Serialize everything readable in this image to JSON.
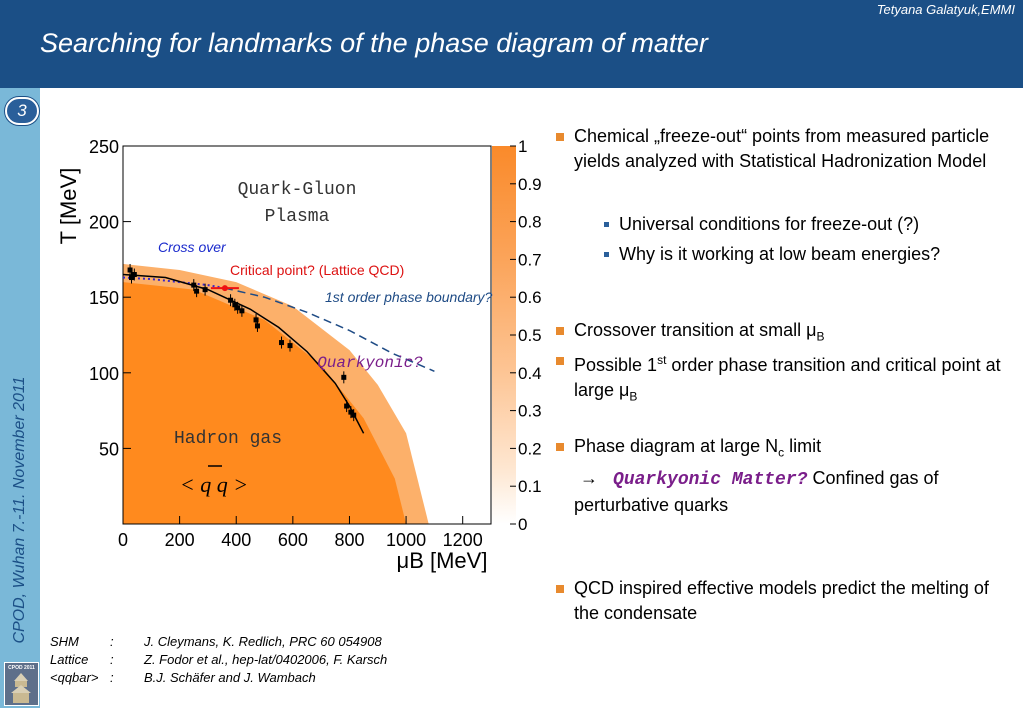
{
  "header": {
    "author": "Tetyana Galatyuk,EMMI",
    "title": "Searching for landmarks of the phase diagram of matter"
  },
  "sidebar": {
    "slide_number": "3",
    "conference": "CPOD, Wuhan 7.-11. November 2011",
    "logo_text": "CPOD 2011"
  },
  "chart_data": {
    "type": "scatter",
    "xlabel": "μB [MeV]",
    "ylabel": "T [MeV]",
    "xlim": [
      0,
      1300
    ],
    "ylim": [
      0,
      250
    ],
    "x_ticks": [
      "0",
      "200",
      "400",
      "600",
      "800",
      "1000",
      "1200"
    ],
    "y_ticks": [
      "50",
      "100",
      "150",
      "200",
      "250"
    ],
    "colorbar_ticks": [
      "0",
      "0.1",
      "0.2",
      "0.3",
      "0.4",
      "0.5",
      "0.6",
      "0.7",
      "0.8",
      "0.9",
      "1"
    ],
    "region_labels": {
      "qgp_line1": "Quark-Gluon",
      "qgp_line2": "Plasma",
      "hadron": "Hadron gas",
      "quarkyonic": "Quarkyonic?",
      "condensate": "< q q >"
    },
    "annotations": {
      "crossover": "Cross over",
      "critical_point": "Critical point? (Lattice QCD)",
      "first_order": "1st order phase boundary?"
    },
    "freeze_out_points": [
      {
        "x": 25,
        "y": 168
      },
      {
        "x": 30,
        "y": 163
      },
      {
        "x": 40,
        "y": 165
      },
      {
        "x": 250,
        "y": 158
      },
      {
        "x": 260,
        "y": 154
      },
      {
        "x": 290,
        "y": 155
      },
      {
        "x": 380,
        "y": 148
      },
      {
        "x": 395,
        "y": 145
      },
      {
        "x": 405,
        "y": 143
      },
      {
        "x": 420,
        "y": 141
      },
      {
        "x": 470,
        "y": 135
      },
      {
        "x": 475,
        "y": 131
      },
      {
        "x": 560,
        "y": 120
      },
      {
        "x": 590,
        "y": 118
      },
      {
        "x": 780,
        "y": 97
      },
      {
        "x": 790,
        "y": 78
      },
      {
        "x": 805,
        "y": 74
      },
      {
        "x": 815,
        "y": 72
      }
    ],
    "freeze_out_curve": [
      [
        0,
        165
      ],
      [
        150,
        163
      ],
      [
        300,
        155
      ],
      [
        450,
        142
      ],
      [
        550,
        130
      ],
      [
        650,
        114
      ],
      [
        750,
        93
      ],
      [
        800,
        78
      ],
      [
        850,
        60
      ]
    ],
    "crossover_curve": [
      [
        0,
        163
      ],
      [
        100,
        162
      ],
      [
        200,
        160
      ],
      [
        300,
        158
      ],
      [
        360,
        156
      ]
    ],
    "critical_point": {
      "x": 360,
      "y": 156
    },
    "first_order_curve": [
      [
        360,
        156
      ],
      [
        500,
        150
      ],
      [
        650,
        140
      ],
      [
        800,
        128
      ],
      [
        950,
        113
      ],
      [
        1100,
        101
      ]
    ],
    "colors": {
      "region": "#ff8a1e",
      "crossover": "#3b28c8",
      "critical": "#ee1111",
      "boundary": "#1e4b85",
      "curve": "#000000"
    }
  },
  "bullets": {
    "b1": "Chemical „freeze-out“ points from measured particle yields analyzed with Statistical Hadronization Model",
    "b1_sub1": "Universal conditions for freeze-out (?)",
    "b1_sub2": "Why is it working at low beam energies?",
    "b2_pre": "Crossover transition at small μ",
    "b2_sub": "B",
    "b3_pre": "Possible 1",
    "b3_sup": "st",
    "b3_mid": " order phase transition and critical point at large μ",
    "b3_sub": "B",
    "b4_pre": "Phase diagram at large N",
    "b4_sub": "c",
    "b4_post": " limit",
    "b4_arrow": "→",
    "b4_mono": "Quarkyonic Matter?",
    "b4_rest": " Confined gas of  perturbative quarks",
    "b5": "QCD inspired effective models predict the melting of the condensate"
  },
  "references": [
    {
      "label": "SHM",
      "sep": ":",
      "text": "J. Cleymans, K. Redlich, PRC 60 054908"
    },
    {
      "label": "Lattice",
      "sep": ":",
      "text": "Z. Fodor et al., hep-lat/0402006, F. Karsch"
    },
    {
      "label": "<qqbar>",
      "sep": ":",
      "text": "B.J. Schäfer and J. Wambach"
    }
  ]
}
